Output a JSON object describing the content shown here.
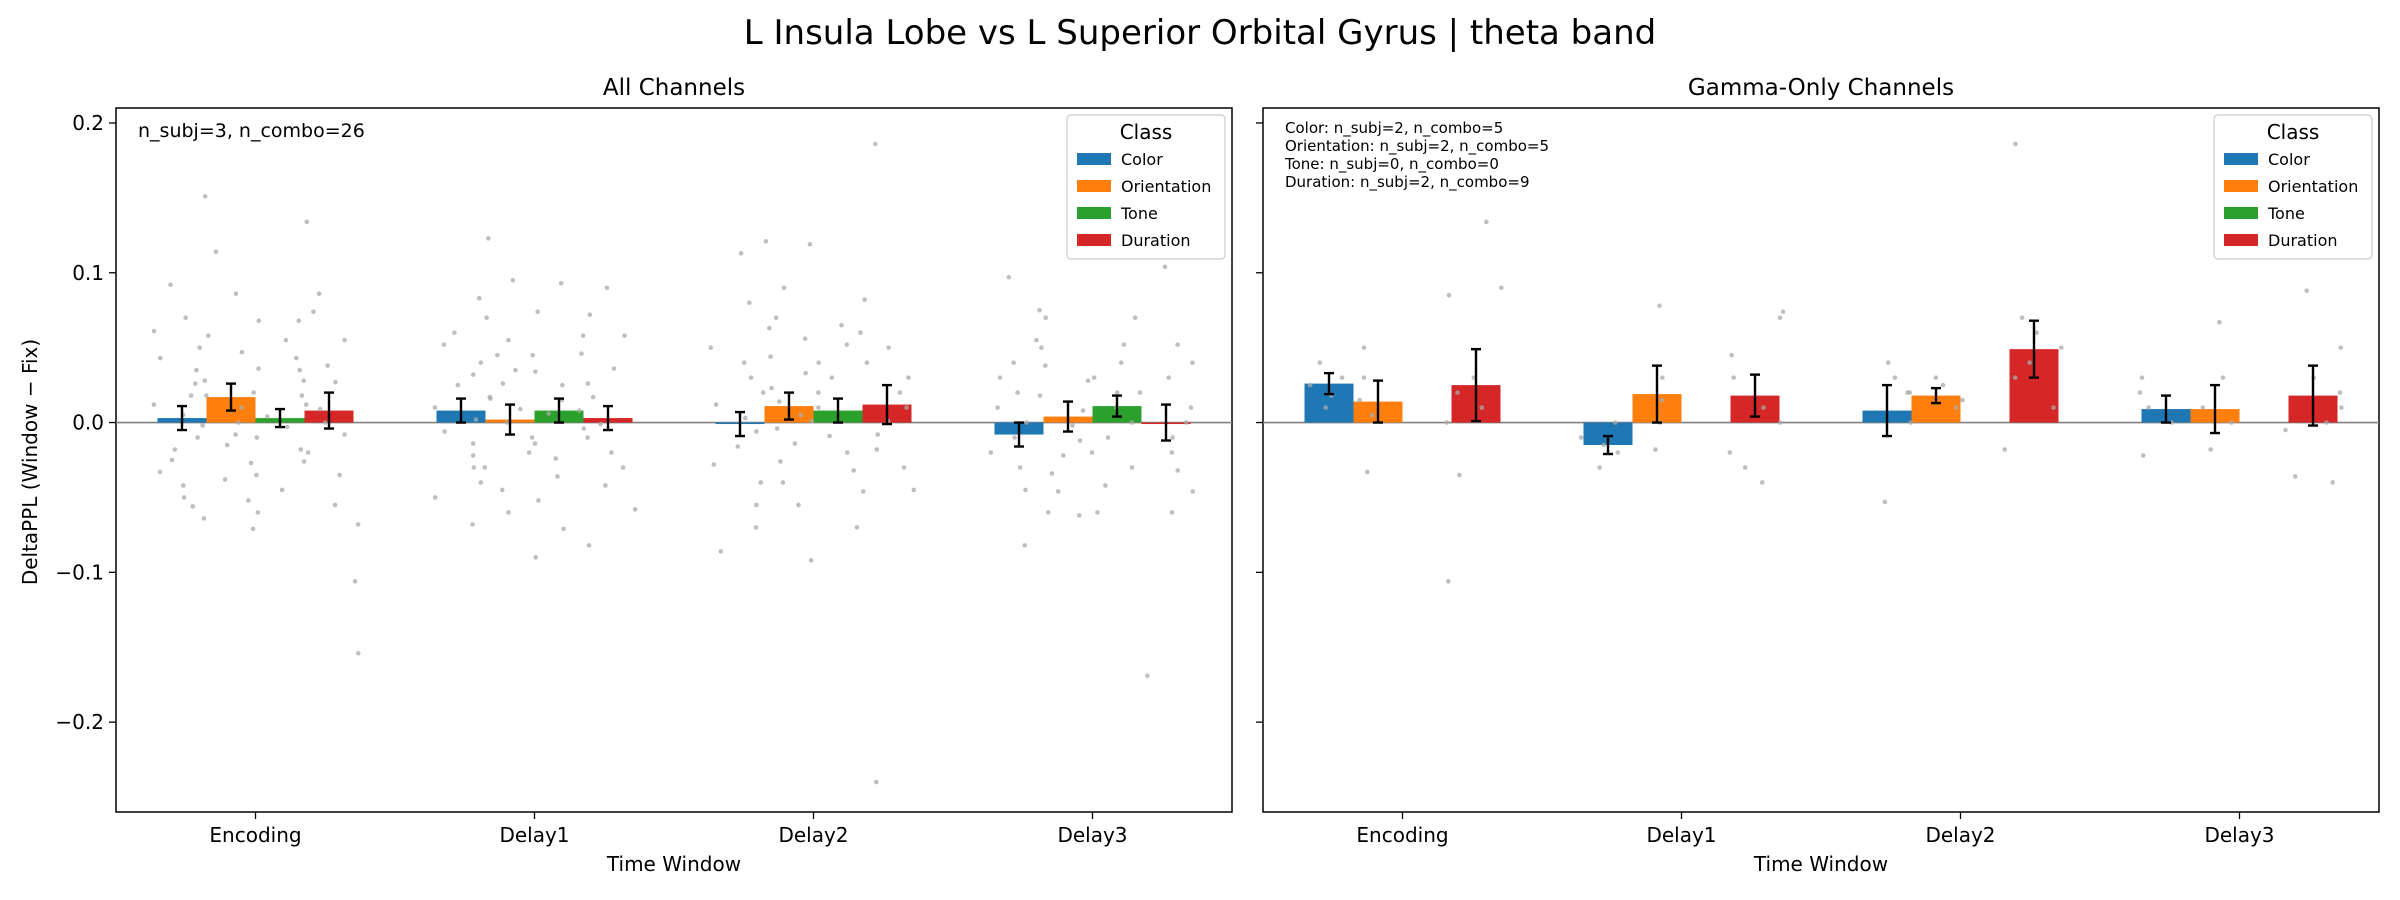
{
  "figure": {
    "suptitle": "L Insula Lobe vs L Superior Orbital Gyrus  |  theta band",
    "ylabel": "DeltaPPL (Window − Fix)",
    "xlabel": "Time Window"
  },
  "colors": {
    "Color": "#1f77b4",
    "Orientation": "#ff7f0e",
    "Tone": "#2ca02c",
    "Duration": "#d62728",
    "scatter": "#a9a9a9",
    "zero_line": "#808080"
  },
  "chart_data": [
    {
      "type": "bar",
      "title": "All Channels",
      "xlabel": "Time Window",
      "ylabel": "DeltaPPL (Window − Fix)",
      "categories": [
        "Encoding",
        "Delay1",
        "Delay2",
        "Delay3"
      ],
      "ylim": [
        -0.26,
        0.21
      ],
      "yticks": [
        -0.2,
        -0.1,
        0.0,
        0.1,
        0.2
      ],
      "ytick_labels": [
        "−0.2",
        "−0.1",
        "0.0",
        "0.1",
        "0.2"
      ],
      "legend": {
        "title": "Class",
        "placement": "top-right"
      },
      "annotation": [
        "n_subj=3, n_combo=26"
      ],
      "series": [
        {
          "name": "Color",
          "values": [
            0.003,
            0.008,
            -0.001,
            -0.008
          ],
          "err": [
            0.008,
            0.008,
            0.008,
            0.008
          ]
        },
        {
          "name": "Orientation",
          "values": [
            0.017,
            0.002,
            0.011,
            0.004
          ],
          "err": [
            0.009,
            0.01,
            0.009,
            0.01
          ]
        },
        {
          "name": "Tone",
          "values": [
            0.003,
            0.008,
            0.008,
            0.011
          ],
          "err": [
            0.006,
            0.008,
            0.008,
            0.007
          ]
        },
        {
          "name": "Duration",
          "values": [
            0.008,
            0.003,
            0.012,
            0.0
          ],
          "err": [
            0.012,
            0.008,
            0.013,
            0.012
          ]
        }
      ],
      "points": [
        [
          [
            0.092,
            0.07,
            0.061,
            0.05,
            0.043,
            0.035,
            0.026,
            0.018,
            0.012,
            0.005,
            -0.002,
            -0.01,
            -0.018,
            -0.025,
            -0.033,
            -0.042,
            -0.05,
            -0.056,
            -0.064
          ],
          [
            0.151,
            0.114,
            0.086,
            0.068,
            0.058,
            0.047,
            0.036,
            0.028,
            0.018,
            0.01,
            0.0,
            -0.008,
            -0.015,
            -0.027,
            -0.038,
            -0.052,
            -0.071
          ],
          [
            0.068,
            0.055,
            0.043,
            0.035,
            0.028,
            0.02,
            0.012,
            0.004,
            -0.003,
            -0.01,
            -0.018,
            -0.026,
            -0.035,
            -0.045,
            -0.06
          ],
          [
            0.134,
            0.086,
            0.074,
            0.055,
            0.038,
            0.027,
            0.018,
            0.009,
            0.0,
            -0.008,
            -0.02,
            -0.035,
            -0.055,
            -0.068,
            -0.106,
            -0.154
          ]
        ],
        [
          [
            0.083,
            0.06,
            0.052,
            0.04,
            0.032,
            0.025,
            0.016,
            0.01,
            0.002,
            -0.006,
            -0.014,
            -0.022,
            -0.03,
            -0.04,
            -0.05,
            -0.068
          ],
          [
            0.123,
            0.095,
            0.07,
            0.055,
            0.045,
            0.035,
            0.026,
            0.017,
            0.009,
            0.0,
            -0.01,
            -0.02,
            -0.03,
            -0.045,
            -0.06,
            -0.09
          ],
          [
            0.093,
            0.074,
            0.058,
            0.045,
            0.034,
            0.025,
            0.015,
            0.006,
            -0.004,
            -0.014,
            -0.024,
            -0.036,
            -0.052,
            -0.071
          ],
          [
            0.09,
            0.072,
            0.058,
            0.046,
            0.036,
            0.026,
            0.017,
            0.008,
            -0.001,
            -0.01,
            -0.02,
            -0.03,
            -0.042,
            -0.058,
            -0.082
          ]
        ],
        [
          [
            0.113,
            0.08,
            0.063,
            0.05,
            0.04,
            0.03,
            0.02,
            0.012,
            0.003,
            -0.006,
            -0.016,
            -0.028,
            -0.04,
            -0.055,
            -0.07,
            -0.086
          ],
          [
            0.121,
            0.09,
            0.07,
            0.056,
            0.044,
            0.033,
            0.023,
            0.014,
            0.005,
            -0.004,
            -0.014,
            -0.026,
            -0.04,
            -0.055,
            -0.092
          ],
          [
            0.119,
            0.082,
            0.065,
            0.052,
            0.04,
            0.03,
            0.02,
            0.01,
            0.001,
            -0.009,
            -0.02,
            -0.032,
            -0.046,
            -0.07
          ],
          [
            0.186,
            0.06,
            0.05,
            0.04,
            0.03,
            0.02,
            0.01,
            0.001,
            -0.008,
            -0.018,
            -0.03,
            -0.045,
            -0.24
          ]
        ],
        [
          [
            0.097,
            0.075,
            0.055,
            0.04,
            0.03,
            0.02,
            0.01,
            0.0,
            -0.01,
            -0.02,
            -0.03,
            -0.045,
            -0.06,
            -0.082
          ],
          [
            0.07,
            0.05,
            0.038,
            0.028,
            0.018,
            0.008,
            -0.002,
            -0.012,
            -0.022,
            -0.034,
            -0.046,
            -0.062
          ],
          [
            0.07,
            0.052,
            0.04,
            0.03,
            0.02,
            0.01,
            0.0,
            -0.01,
            -0.02,
            -0.03,
            -0.042,
            -0.06
          ],
          [
            0.104,
            0.052,
            0.04,
            0.03,
            0.02,
            0.01,
            0.0,
            -0.01,
            -0.02,
            -0.032,
            -0.046,
            -0.06,
            -0.169
          ]
        ]
      ]
    },
    {
      "type": "bar",
      "title": "Gamma-Only Channels",
      "xlabel": "Time Window",
      "categories": [
        "Encoding",
        "Delay1",
        "Delay2",
        "Delay3"
      ],
      "ylim": [
        -0.26,
        0.21
      ],
      "yticks": [
        -0.2,
        -0.1,
        0.0,
        0.1,
        0.2
      ],
      "legend": {
        "title": "Class",
        "placement": "top-right"
      },
      "annotation": [
        "Color: n_subj=2, n_combo=5",
        "Orientation: n_subj=2, n_combo=5",
        "Tone: n_subj=0, n_combo=0",
        "Duration: n_subj=2, n_combo=9"
      ],
      "series": [
        {
          "name": "Color",
          "values": [
            0.026,
            -0.015,
            0.008,
            0.009
          ],
          "err": [
            0.007,
            0.006,
            0.017,
            0.009
          ]
        },
        {
          "name": "Orientation",
          "values": [
            0.014,
            0.019,
            0.018,
            0.009
          ],
          "err": [
            0.014,
            0.019,
            0.005,
            0.016
          ]
        },
        {
          "name": "Tone",
          "values": [
            null,
            null,
            null,
            null
          ],
          "err": [
            null,
            null,
            null,
            null
          ]
        },
        {
          "name": "Duration",
          "values": [
            0.025,
            0.018,
            0.049,
            0.018
          ],
          "err": [
            0.024,
            0.014,
            0.019,
            0.02
          ]
        }
      ],
      "points": [
        [
          [
            0.04,
            0.03,
            0.025,
            0.018,
            0.01
          ],
          [
            0.05,
            0.03,
            0.015,
            0.005,
            -0.033
          ],
          [],
          [
            0.134,
            0.09,
            0.085,
            0.03,
            0.02,
            0.01,
            0.0,
            -0.035,
            -0.106
          ]
        ],
        [
          [
            0.0,
            -0.01,
            -0.015,
            -0.02,
            -0.03
          ],
          [
            0.078,
            0.03,
            0.015,
            0.0,
            -0.018
          ],
          [],
          [
            0.074,
            0.07,
            0.045,
            0.03,
            0.01,
            0.0,
            -0.02,
            -0.03,
            -0.04
          ]
        ],
        [
          [
            0.04,
            0.03,
            0.02,
            0.0,
            -0.053
          ],
          [
            0.03,
            0.025,
            0.02,
            0.015,
            0.01
          ],
          [],
          [
            0.186,
            0.07,
            0.06,
            0.05,
            0.04,
            0.03,
            0.01,
            -0.018
          ]
        ],
        [
          [
            0.03,
            0.02,
            0.01,
            0.0,
            -0.022
          ],
          [
            0.067,
            0.03,
            0.01,
            0.0,
            -0.018
          ],
          [],
          [
            0.088,
            0.05,
            0.03,
            0.02,
            0.01,
            0.0,
            -0.005,
            -0.036,
            -0.04
          ]
        ]
      ]
    }
  ]
}
